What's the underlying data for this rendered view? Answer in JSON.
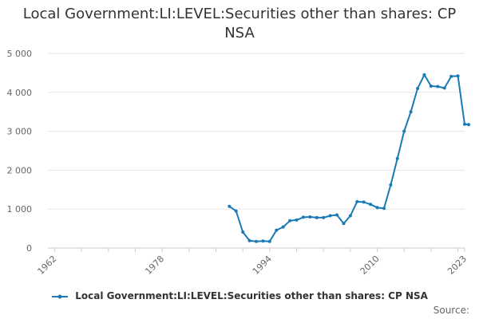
{
  "chart_data": {
    "type": "line",
    "title": "Local Government:LI:LEVEL:Securities other than shares: CP NSA",
    "title_lines": [
      "Local Government:LI:LEVEL:Securities other than shares: CP",
      "NSA"
    ],
    "xlabel": "",
    "ylabel": "",
    "xlim": [
      1961,
      2023
    ],
    "ylim": [
      0,
      5000
    ],
    "y_ticks": [
      0,
      1000,
      2000,
      3000,
      4000,
      5000
    ],
    "y_tick_labels": [
      "0",
      "1 000",
      "2 000",
      "3 000",
      "4 000",
      "5 000"
    ],
    "x_ticks": [
      1962,
      1978,
      1994,
      2010,
      2023
    ],
    "x_tick_labels": [
      "1962",
      "1978",
      "1994",
      "2010",
      "2023"
    ],
    "x_minor_ticks": [
      1962,
      1966,
      1970,
      1974,
      1978,
      1982,
      1986,
      1990,
      1994,
      1998,
      2002,
      2006,
      2010,
      2014,
      2018,
      2022
    ],
    "grid": true,
    "legend_position": "bottom",
    "series": [
      {
        "name": "Local Government:LI:LEVEL:Securities other than shares: CP NSA",
        "color": "#1a7ab5",
        "x": [
          1988,
          1989,
          1990,
          1991,
          1992,
          1993,
          1994,
          1995,
          1996,
          1997,
          1998,
          1999,
          2000,
          2001,
          2002,
          2003,
          2004,
          2005,
          2006,
          2007,
          2008,
          2009,
          2010,
          2011,
          2012,
          2013,
          2014,
          2015,
          2016,
          2017,
          2018,
          2019,
          2020,
          2021,
          2022,
          2023
        ],
        "values": [
          1070,
          950,
          410,
          190,
          170,
          180,
          170,
          460,
          540,
          700,
          720,
          790,
          800,
          780,
          780,
          830,
          850,
          630,
          830,
          1190,
          1180,
          1120,
          1040,
          1020,
          1620,
          2300,
          3000,
          3500,
          4100,
          4450,
          4160,
          4150,
          4110,
          4410,
          4420,
          3180
        ]
      },
      {
        "name": "Local Government:LI:LEVEL:Securities other than shares: CP NSA",
        "color": "#1a7ab5",
        "x": [
          2023
        ],
        "values": [
          3170
        ]
      }
    ]
  },
  "footer": {
    "source_label": "Source:"
  }
}
